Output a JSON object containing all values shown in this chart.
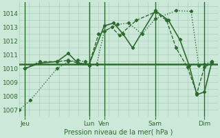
{
  "background_color": "#cce8d8",
  "grid_color": "#aacfbe",
  "line_color": "#2d6a2d",
  "reference_line_y": 1010.3,
  "xlabel_text": "Pression niveau de la mer( hPa )",
  "ylim": [
    1006.5,
    1014.8
  ],
  "xlim": [
    0,
    10.5
  ],
  "yticks": [
    1007,
    1008,
    1009,
    1010,
    1011,
    1012,
    1013,
    1014
  ],
  "xtick_pos": [
    0.3,
    3.7,
    4.5,
    7.2,
    9.8
  ],
  "xtick_labels": [
    "Jeu",
    "Lun",
    "Ven",
    "Sam",
    "Dim"
  ],
  "vlines": [
    0.3,
    3.7,
    4.5,
    7.2,
    9.8
  ],
  "series": [
    {
      "x": [
        0.0,
        0.6,
        2.0,
        2.6,
        3.1,
        3.5,
        3.7,
        4.1,
        4.5,
        5.2,
        5.8,
        6.5,
        7.2,
        8.3,
        9.1,
        9.5,
        9.8,
        10.2
      ],
      "y": [
        1007.0,
        1007.7,
        1010.0,
        1010.5,
        1010.6,
        1010.5,
        1010.2,
        1010.3,
        1012.7,
        1013.2,
        1013.3,
        1012.5,
        1013.6,
        1014.2,
        1014.15,
        1010.2,
        1010.3,
        1010.5
      ],
      "linestyle": "dotted",
      "linewidth": 1.0
    },
    {
      "x": [
        0.3,
        1.1,
        2.0,
        2.6,
        3.1,
        3.7,
        4.5,
        5.0,
        5.5,
        6.0,
        7.2,
        7.9,
        8.5,
        9.0,
        9.4,
        9.8,
        10.2
      ],
      "y": [
        1010.0,
        1010.4,
        1010.5,
        1011.1,
        1010.4,
        1010.3,
        1013.1,
        1013.3,
        1012.5,
        1011.5,
        1014.2,
        1013.5,
        1012.1,
        1010.2,
        1008.1,
        1008.3,
        1010.5
      ],
      "linestyle": "solid",
      "linewidth": 1.2
    },
    {
      "x": [
        0.3,
        1.1,
        2.0,
        2.6,
        3.1,
        3.7,
        4.2,
        4.9,
        5.3,
        6.2,
        7.2,
        7.8,
        8.3,
        8.9,
        9.4,
        9.8,
        10.2
      ],
      "y": [
        1010.0,
        1010.5,
        1010.5,
        1010.6,
        1010.4,
        1010.3,
        1012.5,
        1013.0,
        1012.4,
        1013.5,
        1014.1,
        1013.5,
        1011.5,
        1010.1,
        1008.2,
        1010.1,
        1010.4
      ],
      "linestyle": "dashed",
      "linewidth": 1.0
    }
  ]
}
